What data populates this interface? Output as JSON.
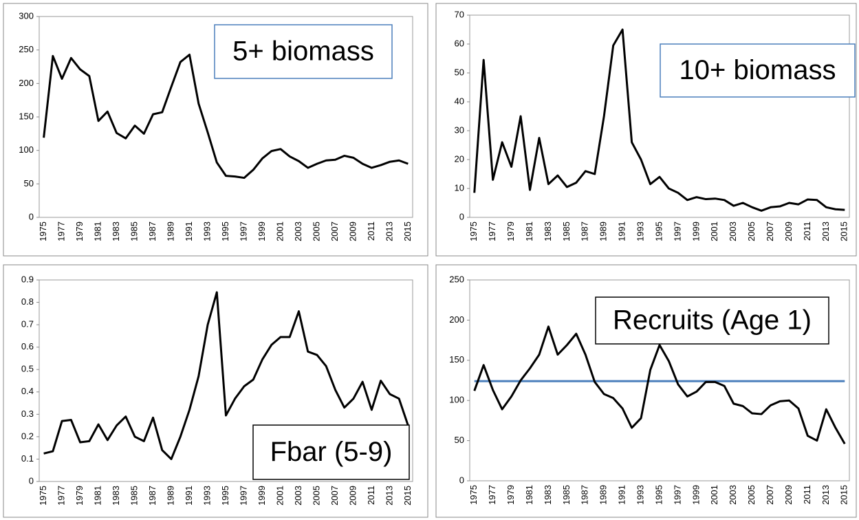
{
  "chart_data": [
    {
      "type": "line",
      "title": "5+ biomass",
      "title_border": "#4a7ebb",
      "color": "#000000",
      "categories": [
        "1975",
        null,
        "1977",
        null,
        "1979",
        null,
        "1981",
        null,
        "1983",
        null,
        "1985",
        null,
        "1987",
        null,
        "1989",
        null,
        "1991",
        null,
        "1993",
        null,
        "1995",
        null,
        "1997",
        null,
        "1999",
        null,
        "2001",
        null,
        "2003",
        null,
        "2005",
        null,
        "2007",
        null,
        "2009",
        null,
        "2011",
        null,
        "2013",
        null,
        "2015"
      ],
      "values": [
        119,
        241,
        207,
        238,
        221,
        211,
        144,
        158,
        126,
        118,
        137,
        125,
        154,
        157,
        195,
        232,
        243,
        170,
        127,
        82,
        62,
        61,
        59,
        71,
        88,
        99,
        102,
        91,
        84,
        74,
        80,
        85,
        86,
        92,
        89,
        80,
        74,
        78,
        83,
        85,
        80
      ],
      "ylim": [
        0,
        300
      ],
      "yticks": [
        0,
        50,
        100,
        150,
        200,
        250,
        300
      ]
    },
    {
      "type": "line",
      "title": "10+ biomass",
      "title_border": "#4a7ebb",
      "color": "#000000",
      "categories": [
        "1975",
        null,
        "1977",
        null,
        "1979",
        null,
        "1981",
        null,
        "1983",
        null,
        "1985",
        null,
        "1987",
        null,
        "1989",
        null,
        "1991",
        null,
        "1993",
        null,
        "1995",
        null,
        "1997",
        null,
        "1999",
        null,
        "2001",
        null,
        "2003",
        null,
        "2005",
        null,
        "2007",
        null,
        "2009",
        null,
        "2011",
        null,
        "2013",
        null,
        "2015"
      ],
      "values": [
        8.5,
        54.5,
        13,
        26,
        17.5,
        35,
        9.5,
        27.5,
        11.5,
        14.5,
        10.5,
        12,
        16,
        15,
        35,
        59.5,
        65,
        26,
        20,
        11.5,
        14,
        10,
        8.5,
        6,
        7,
        6.3,
        6.5,
        6,
        4,
        5,
        3.5,
        2.3,
        3.5,
        3.8,
        5,
        4.5,
        6.2,
        6,
        3.5,
        2.8,
        2.6
      ],
      "ylim": [
        0,
        70
      ],
      "yticks": [
        0,
        10,
        20,
        30,
        40,
        50,
        60,
        70
      ]
    },
    {
      "type": "line",
      "title": "Fbar (5-9)",
      "title_border": "#000000",
      "color": "#000000",
      "categories": [
        "1975",
        null,
        "1977",
        null,
        "1979",
        null,
        "1981",
        null,
        "1983",
        null,
        "1985",
        null,
        "1987",
        null,
        "1989",
        null,
        "1991",
        null,
        "1993",
        null,
        "1995",
        null,
        "1997",
        null,
        "1999",
        null,
        "2001",
        null,
        "2003",
        null,
        "2005",
        null,
        "2007",
        null,
        "2009",
        null,
        "2011",
        null,
        "2013",
        null,
        "2015"
      ],
      "values": [
        0.125,
        0.135,
        0.27,
        0.275,
        0.175,
        0.18,
        0.255,
        0.185,
        0.25,
        0.29,
        0.2,
        0.18,
        0.285,
        0.14,
        0.1,
        0.2,
        0.32,
        0.47,
        0.7,
        0.845,
        0.295,
        0.37,
        0.425,
        0.455,
        0.545,
        0.61,
        0.645,
        0.645,
        0.76,
        0.58,
        0.565,
        0.515,
        0.41,
        0.33,
        0.37,
        0.445,
        0.32,
        0.45,
        0.39,
        0.37,
        0.25
      ],
      "ylim": [
        0,
        0.9
      ],
      "yticks": [
        0,
        0.1,
        0.2,
        0.3,
        0.4,
        0.5,
        0.6,
        0.7,
        0.8,
        0.9
      ]
    },
    {
      "type": "line",
      "title": "Recruits (Age 1)",
      "title_border": "#000000",
      "color": "#000000",
      "categories": [
        "1975",
        null,
        "1977",
        null,
        "1979",
        null,
        "1981",
        null,
        "1983",
        null,
        "1985",
        null,
        "1987",
        null,
        "1989",
        null,
        "1991",
        null,
        "1993",
        null,
        "1995",
        null,
        "1997",
        null,
        "1999",
        null,
        "2001",
        null,
        "2003",
        null,
        "2005",
        null,
        "2007",
        null,
        "2009",
        null,
        "2011",
        null,
        "2013",
        null,
        "2015"
      ],
      "values": [
        112,
        144,
        113,
        89,
        105,
        125,
        140,
        157,
        192,
        157,
        169,
        183,
        157,
        123,
        108,
        103,
        90,
        66,
        78,
        138,
        169,
        149,
        120,
        105,
        111,
        123,
        123,
        118,
        96,
        93,
        84,
        83,
        94,
        99,
        100,
        90,
        56,
        50,
        89,
        66,
        46
      ],
      "reference_line": {
        "value": 124,
        "color": "#4a7ebb"
      },
      "ylim": [
        0,
        250
      ],
      "yticks": [
        0,
        50,
        100,
        150,
        200,
        250
      ]
    }
  ]
}
